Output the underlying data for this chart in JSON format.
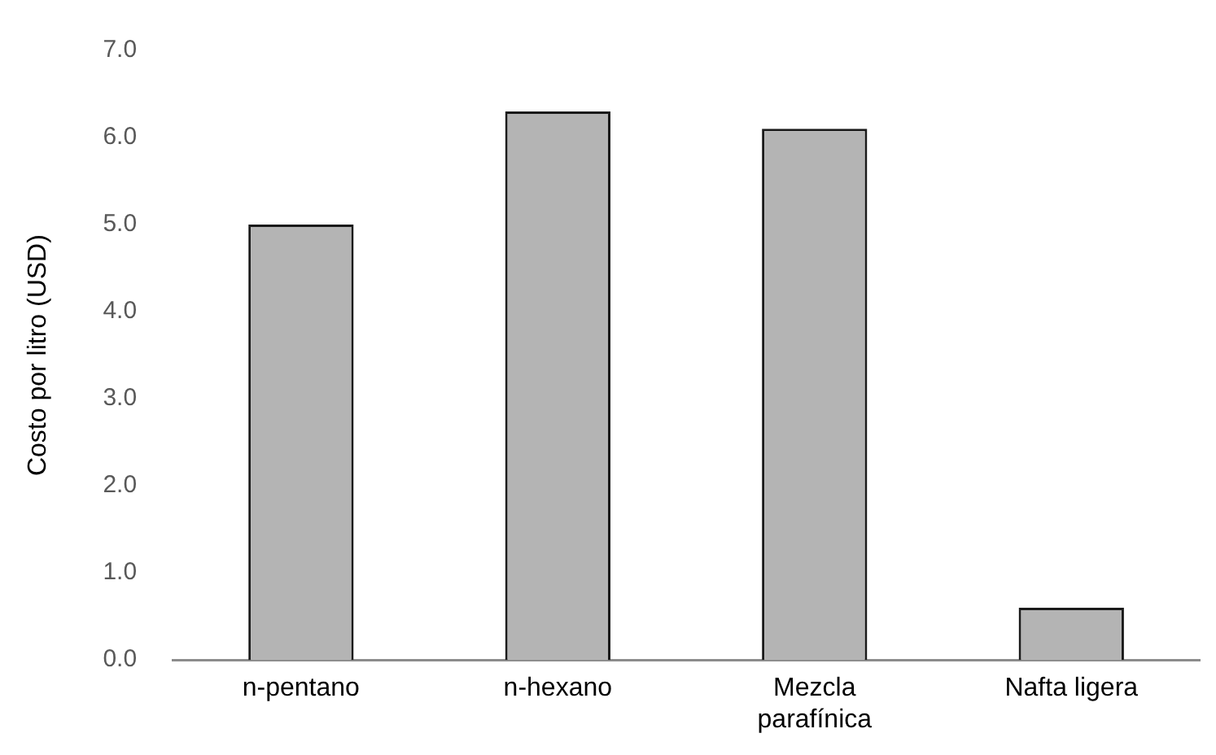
{
  "chart_data": {
    "type": "bar",
    "ylabel": "Costo por litro (USD)",
    "categories": [
      "n-pentano",
      "n-hexano",
      "Mezcla parafínica",
      "Nafta ligera"
    ],
    "values": [
      5.0,
      6.3,
      6.1,
      0.6
    ],
    "color": "#b4b4b4",
    "ylim": [
      0,
      7
    ],
    "yticks": [
      {
        "value": 0,
        "label": "0.0"
      },
      {
        "value": 1,
        "label": "1.0"
      },
      {
        "value": 2,
        "label": "2.0"
      },
      {
        "value": 3,
        "label": "3.0"
      },
      {
        "value": 4,
        "label": "4.0"
      },
      {
        "value": 5,
        "label": "5.0"
      },
      {
        "value": 6,
        "label": "6.0"
      },
      {
        "value": 7,
        "label": "7.0"
      }
    ],
    "grid": false,
    "legend": false
  }
}
